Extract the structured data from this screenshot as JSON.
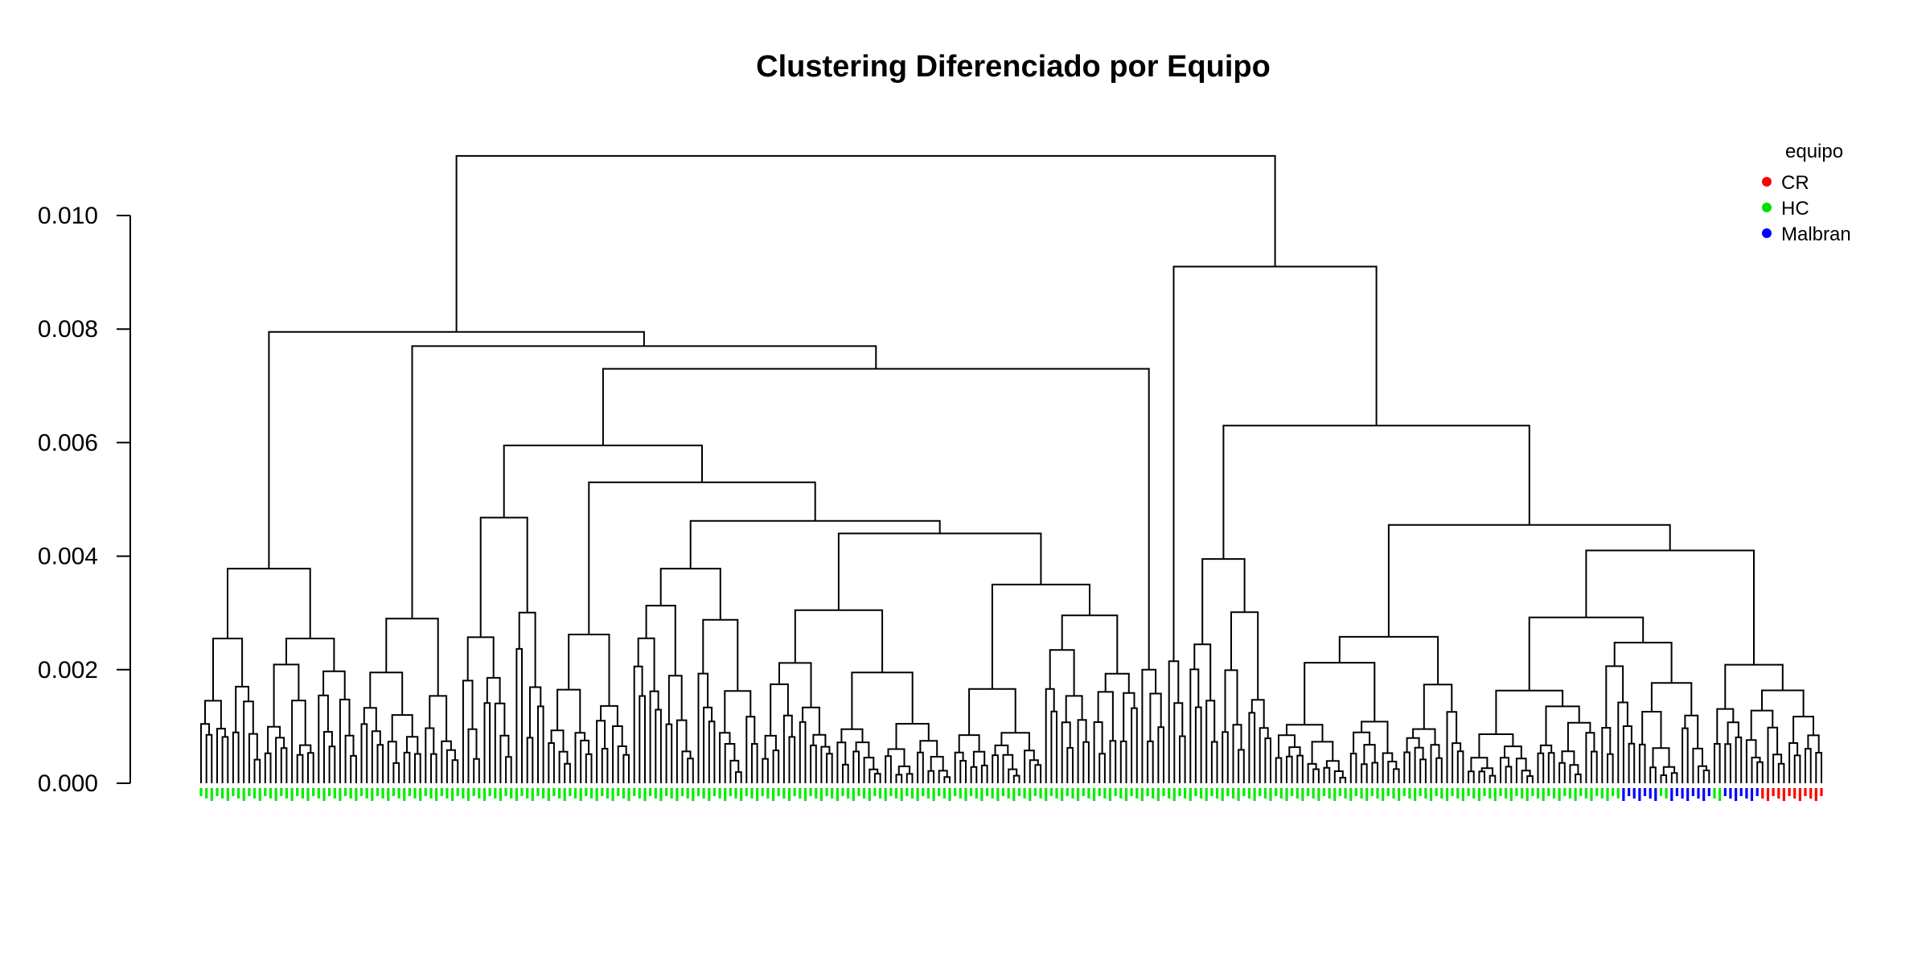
{
  "chart_data": {
    "type": "dendrogram",
    "title": "Clustering Diferenciado por Equipo",
    "xlabel": "",
    "ylabel": "",
    "ylim": [
      0,
      0.0112
    ],
    "y_ticks": [
      "0.000",
      "0.002",
      "0.004",
      "0.006",
      "0.008",
      "0.010"
    ],
    "legend": {
      "title": "equipo",
      "position": "top-right",
      "items": [
        {
          "label": "CR",
          "color": "#ff0000"
        },
        {
          "label": "HC",
          "color": "#00dd00"
        },
        {
          "label": "Malbran",
          "color": "#0000ff"
        }
      ]
    },
    "leaf_counts": {
      "HC": 270,
      "Malbran": 22,
      "CR": 12
    },
    "merge_heights": {
      "root": 0.01105,
      "left_main": 0.00795,
      "left_a": 0.00378,
      "left_a1": 0.00255,
      "left_a2": 0.00255,
      "left_b": 0.0077,
      "left_b1": 0.0029,
      "left_b2": 0.0073,
      "left_b2a": 0.00595,
      "left_b2a1": 0.00468,
      "left_b2a2": 0.0053,
      "left_b2a2a": 0.00462,
      "left_b2a2b": 0.0044,
      "right_main": 0.0091,
      "right_a": 0.0063,
      "right_a1": 0.00395,
      "right_a2": 0.00455,
      "right_a2a": 0.00258,
      "right_a2b": 0.0041
    }
  }
}
